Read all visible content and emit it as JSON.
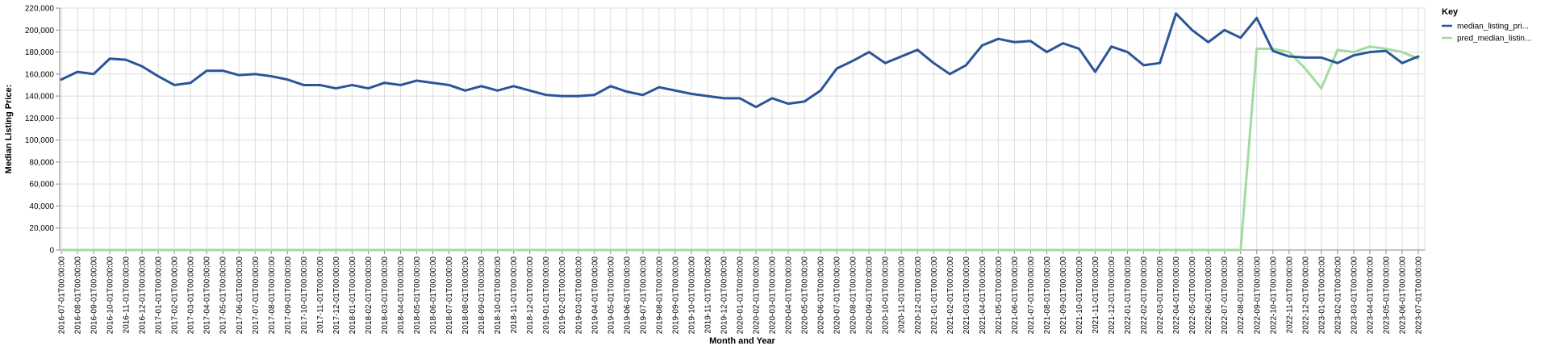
{
  "chart_data": {
    "type": "line",
    "xlabel": "Month and Year",
    "ylabel": "Median Listing Price:",
    "ylim": [
      0,
      220000
    ],
    "yticks": [
      "0",
      "20,000",
      "40,000",
      "60,000",
      "80,000",
      "100,000",
      "120,000",
      "140,000",
      "160,000",
      "180,000",
      "200,000",
      "220,000"
    ],
    "grid": true,
    "legend": {
      "title": "Key",
      "placement": "right",
      "items": [
        "median_listing_pri...",
        "pred_median_listin..."
      ]
    },
    "x": [
      "2016-07-01T00:00:00",
      "2016-08-01T00:00:00",
      "2016-09-01T00:00:00",
      "2016-10-01T00:00:00",
      "2016-11-01T00:00:00",
      "2016-12-01T00:00:00",
      "2017-01-01T00:00:00",
      "2017-02-01T00:00:00",
      "2017-03-01T00:00:00",
      "2017-04-01T00:00:00",
      "2017-05-01T00:00:00",
      "2017-06-01T00:00:00",
      "2017-07-01T00:00:00",
      "2017-08-01T00:00:00",
      "2017-09-01T00:00:00",
      "2017-10-01T00:00:00",
      "2017-11-01T00:00:00",
      "2017-12-01T00:00:00",
      "2018-01-01T00:00:00",
      "2018-02-01T00:00:00",
      "2018-03-01T00:00:00",
      "2018-04-01T00:00:00",
      "2018-05-01T00:00:00",
      "2018-06-01T00:00:00",
      "2018-07-01T00:00:00",
      "2018-08-01T00:00:00",
      "2018-09-01T00:00:00",
      "2018-10-01T00:00:00",
      "2018-11-01T00:00:00",
      "2018-12-01T00:00:00",
      "2019-01-01T00:00:00",
      "2019-02-01T00:00:00",
      "2019-03-01T00:00:00",
      "2019-04-01T00:00:00",
      "2019-05-01T00:00:00",
      "2019-06-01T00:00:00",
      "2019-07-01T00:00:00",
      "2019-08-01T00:00:00",
      "2019-09-01T00:00:00",
      "2019-10-01T00:00:00",
      "2019-11-01T00:00:00",
      "2019-12-01T00:00:00",
      "2020-01-01T00:00:00",
      "2020-02-01T00:00:00",
      "2020-03-01T00:00:00",
      "2020-04-01T00:00:00",
      "2020-05-01T00:00:00",
      "2020-06-01T00:00:00",
      "2020-07-01T00:00:00",
      "2020-08-01T00:00:00",
      "2020-09-01T00:00:00",
      "2020-10-01T00:00:00",
      "2020-11-01T00:00:00",
      "2020-12-01T00:00:00",
      "2021-01-01T00:00:00",
      "2021-02-01T00:00:00",
      "2021-03-01T00:00:00",
      "2021-04-01T00:00:00",
      "2021-05-01T00:00:00",
      "2021-06-01T00:00:00",
      "2021-07-01T00:00:00",
      "2021-08-01T00:00:00",
      "2021-09-01T00:00:00",
      "2021-10-01T00:00:00",
      "2021-11-01T00:00:00",
      "2021-12-01T00:00:00",
      "2022-01-01T00:00:00",
      "2022-02-01T00:00:00",
      "2022-03-01T00:00:00",
      "2022-04-01T00:00:00",
      "2022-05-01T00:00:00",
      "2022-06-01T00:00:00",
      "2022-07-01T00:00:00",
      "2022-08-01T00:00:00",
      "2022-09-01T00:00:00",
      "2022-10-01T00:00:00",
      "2022-11-01T00:00:00",
      "2022-12-01T00:00:00",
      "2023-01-01T00:00:00",
      "2023-02-01T00:00:00",
      "2023-03-01T00:00:00",
      "2023-04-01T00:00:00",
      "2023-05-01T00:00:00",
      "2023-06-01T00:00:00",
      "2023-07-01T00:00:00"
    ],
    "series": [
      {
        "name": "median_listing_pri...",
        "color": "#2a5599",
        "values": [
          155000,
          162000,
          160000,
          174000,
          173000,
          167000,
          158000,
          150000,
          152000,
          163000,
          163000,
          159000,
          160000,
          158000,
          155000,
          150000,
          150000,
          147000,
          150000,
          147000,
          152000,
          150000,
          154000,
          152000,
          150000,
          145000,
          149000,
          145000,
          149000,
          145000,
          141000,
          140000,
          140000,
          141000,
          149000,
          144000,
          141000,
          148000,
          145000,
          142000,
          140000,
          138000,
          138000,
          130000,
          138000,
          133000,
          135000,
          145000,
          165000,
          172000,
          180000,
          170000,
          176000,
          182000,
          170000,
          160000,
          168000,
          186000,
          192000,
          189000,
          190000,
          180000,
          188000,
          183000,
          162000,
          185000,
          180000,
          168000,
          170000,
          215000,
          200000,
          189000,
          200000,
          193000,
          211000,
          181000,
          176000,
          175000,
          175000,
          170000,
          177000,
          180000,
          181000,
          170000,
          176000
        ]
      },
      {
        "name": "pred_median_listin...",
        "color": "#a3dba0",
        "values": [
          0,
          0,
          0,
          0,
          0,
          0,
          0,
          0,
          0,
          0,
          0,
          0,
          0,
          0,
          0,
          0,
          0,
          0,
          0,
          0,
          0,
          0,
          0,
          0,
          0,
          0,
          0,
          0,
          0,
          0,
          0,
          0,
          0,
          0,
          0,
          0,
          0,
          0,
          0,
          0,
          0,
          0,
          0,
          0,
          0,
          0,
          0,
          0,
          0,
          0,
          0,
          0,
          0,
          0,
          0,
          0,
          0,
          0,
          0,
          0,
          0,
          0,
          0,
          0,
          0,
          0,
          0,
          0,
          0,
          0,
          0,
          0,
          0,
          0,
          183000,
          183000,
          180000,
          165000,
          147000,
          182000,
          180000,
          185000,
          183000,
          180000,
          174000
        ]
      }
    ]
  }
}
